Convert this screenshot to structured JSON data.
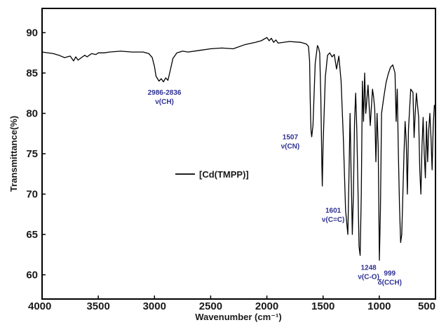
{
  "chart_data": {
    "type": "line",
    "title": "",
    "xlabel": "Wavenumber (cm⁻¹)",
    "ylabel": "Transmittance(%)",
    "xlim": [
      4000,
      500
    ],
    "ylim": [
      57,
      93
    ],
    "x_reversed": true,
    "grid": false,
    "legend_position": "center-left",
    "x_ticks": [
      "4000",
      "3500",
      "3000",
      "2500",
      "2000",
      "1500",
      "1000",
      "500"
    ],
    "y_ticks": [
      "60",
      "65",
      "70",
      "75",
      "80",
      "85",
      "90"
    ],
    "series": [
      {
        "name": "[Cd(TMPP)]",
        "color": "#000000",
        "x": [
          4000,
          3900,
          3850,
          3800,
          3750,
          3720,
          3700,
          3680,
          3650,
          3620,
          3600,
          3560,
          3520,
          3500,
          3450,
          3400,
          3300,
          3200,
          3100,
          3050,
          3020,
          3000,
          2986,
          2960,
          2940,
          2920,
          2900,
          2880,
          2860,
          2836,
          2800,
          2750,
          2700,
          2600,
          2500,
          2400,
          2300,
          2200,
          2100,
          2050,
          2000,
          1980,
          1960,
          1940,
          1920,
          1900,
          1800,
          1700,
          1650,
          1630,
          1620,
          1615,
          1610,
          1607,
          1601,
          1590,
          1570,
          1550,
          1540,
          1530,
          1520,
          1510,
          1507,
          1500,
          1480,
          1460,
          1440,
          1420,
          1400,
          1380,
          1360,
          1340,
          1320,
          1300,
          1280,
          1270,
          1260,
          1250,
          1248,
          1240,
          1230,
          1220,
          1210,
          1200,
          1190,
          1180,
          1170,
          1160,
          1150,
          1140,
          1130,
          1120,
          1100,
          1080,
          1060,
          1050,
          1040,
          1030,
          1020,
          1010,
          999,
          990,
          980,
          960,
          940,
          920,
          900,
          880,
          860,
          850,
          840,
          830,
          820,
          810,
          800,
          790,
          780,
          770,
          760,
          750,
          740,
          720,
          700,
          690,
          680,
          670,
          660,
          650,
          640,
          630,
          620,
          610,
          600,
          590,
          580,
          570,
          560,
          550,
          540,
          530,
          520,
          510,
          500
        ],
        "values": [
          87.6,
          87.4,
          87.2,
          86.9,
          87.1,
          86.5,
          87.0,
          86.6,
          86.9,
          87.2,
          87.0,
          87.4,
          87.3,
          87.5,
          87.5,
          87.6,
          87.7,
          87.6,
          87.6,
          87.4,
          86.9,
          85.8,
          84.6,
          84.0,
          84.3,
          83.9,
          84.4,
          84.1,
          85.3,
          86.8,
          87.5,
          87.7,
          87.6,
          87.8,
          88.0,
          88.1,
          88.0,
          88.5,
          88.8,
          89.0,
          89.4,
          89.0,
          89.3,
          88.8,
          89.1,
          88.7,
          88.9,
          88.8,
          88.6,
          88.3,
          86.5,
          82.0,
          79.0,
          77.8,
          77.1,
          78.5,
          86.2,
          88.4,
          88.1,
          87.5,
          82.0,
          73.0,
          71.0,
          76.0,
          84.5,
          87.2,
          87.5,
          87.0,
          87.3,
          85.5,
          87.1,
          84.0,
          77.0,
          68.0,
          65.0,
          72.0,
          80.0,
          72.0,
          71.0,
          65.0,
          70.0,
          79.0,
          82.5,
          78.0,
          71.0,
          63.5,
          62.4,
          70.0,
          84.0,
          79.0,
          85.0,
          80.0,
          83.5,
          78.5,
          83.0,
          82.0,
          80.5,
          74.0,
          80.0,
          76.0,
          61.8,
          68.0,
          80.0,
          82.0,
          83.8,
          84.9,
          85.7,
          86.0,
          85.0,
          79.0,
          83.0,
          75.0,
          68.5,
          64.0,
          65.0,
          70.0,
          75.0,
          79.0,
          76.5,
          70.0,
          78.0,
          83.0,
          82.6,
          77.0,
          80.0,
          82.5,
          81.0,
          79.5,
          73.0,
          70.0,
          76.0,
          79.5,
          75.0,
          72.0,
          79.0,
          74.0,
          78.0,
          80.0,
          77.0,
          73.0,
          78.5,
          81.0,
          80.5
        ]
      }
    ],
    "annotations": [
      {
        "x": 2911,
        "y": 82.3,
        "lines": [
          "2986-2836",
          "ν(CH)"
        ],
        "color": "#2e3192"
      },
      {
        "x": 1792,
        "y": 76.8,
        "lines": [
          "1507",
          "ν(CN)"
        ],
        "color": "#2e3192"
      },
      {
        "x": 1410,
        "y": 67.7,
        "lines": [
          "1601",
          "ν(C=C)"
        ],
        "color": "#2e3192"
      },
      {
        "x": 1095,
        "y": 60.6,
        "lines": [
          "1248",
          "ν(C-O)"
        ],
        "color": "#2e3192"
      },
      {
        "x": 907,
        "y": 59.9,
        "lines": [
          "999",
          "δ(CCH)"
        ],
        "color": "#2e3192"
      }
    ]
  }
}
